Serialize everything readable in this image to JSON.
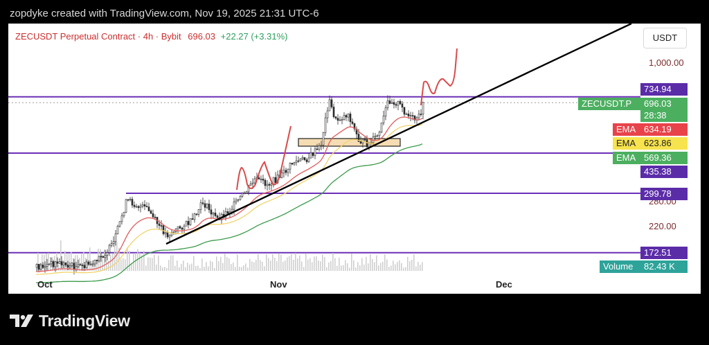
{
  "header": {
    "created_text": "zopdyke created with TradingView.com, Nov 19, 2025 21:31 UTC-6"
  },
  "legend": {
    "symbol": "ZECUSDT Perpetual Contract · 4h · Bybit",
    "price": "696.03",
    "change": "+22.27 (+3.31%)"
  },
  "unit_button": "USDT",
  "price_axis": {
    "labels": [
      {
        "text": "1,000.00",
        "price": 1000
      },
      {
        "text": "280.00",
        "price": 280
      },
      {
        "text": "220.00",
        "price": 220
      }
    ]
  },
  "tags": {
    "level_734": "734.94",
    "symbol_tag": "ZECUSDT.P",
    "last_price": "696.03",
    "countdown": "28:38",
    "ema_label_1": "EMA",
    "ema_value_1": "634.19",
    "ema_label_2": "EMA",
    "ema_value_2": "623.86",
    "ema_label_3": "EMA",
    "ema_value_3": "569.36",
    "level_435": "435.38",
    "level_299": "299.78",
    "level_172": "172.51",
    "volume_label": "Volume",
    "volume_value": "82.43 K"
  },
  "colors": {
    "level_line": "#6a2fb7",
    "trendline": "#000000",
    "projection": "#d94a4a",
    "ema_fast": "#e05a5a",
    "ema_mid": "#f2d36b",
    "ema_slow": "#3b9a4a",
    "up": "#3a3a3a",
    "down": "#3a3a3a",
    "tag_green": "#4caf60",
    "tag_red": "#e8434a",
    "tag_yellow": "#f7e34d",
    "tag_purple": "#5b2ca8",
    "tag_teal": "#2ea39a",
    "zone": "#f6dcb3"
  },
  "x_axis": {
    "labels": [
      "Oct",
      "Nov",
      "Dec"
    ]
  },
  "footer": {
    "brand": "TradingView"
  },
  "chart_data": {
    "type": "candlestick",
    "symbol": "ZECUSDT.P",
    "timeframe": "4h",
    "yscale": "log",
    "levels": [
      734.94,
      435.38,
      299.78,
      172.51
    ],
    "last_price": 696.03,
    "ema": [
      634.19,
      623.86,
      569.36
    ],
    "x_ticks": [
      "Oct",
      "Nov",
      "Dec"
    ],
    "ylim": [
      150,
      1400
    ]
  }
}
